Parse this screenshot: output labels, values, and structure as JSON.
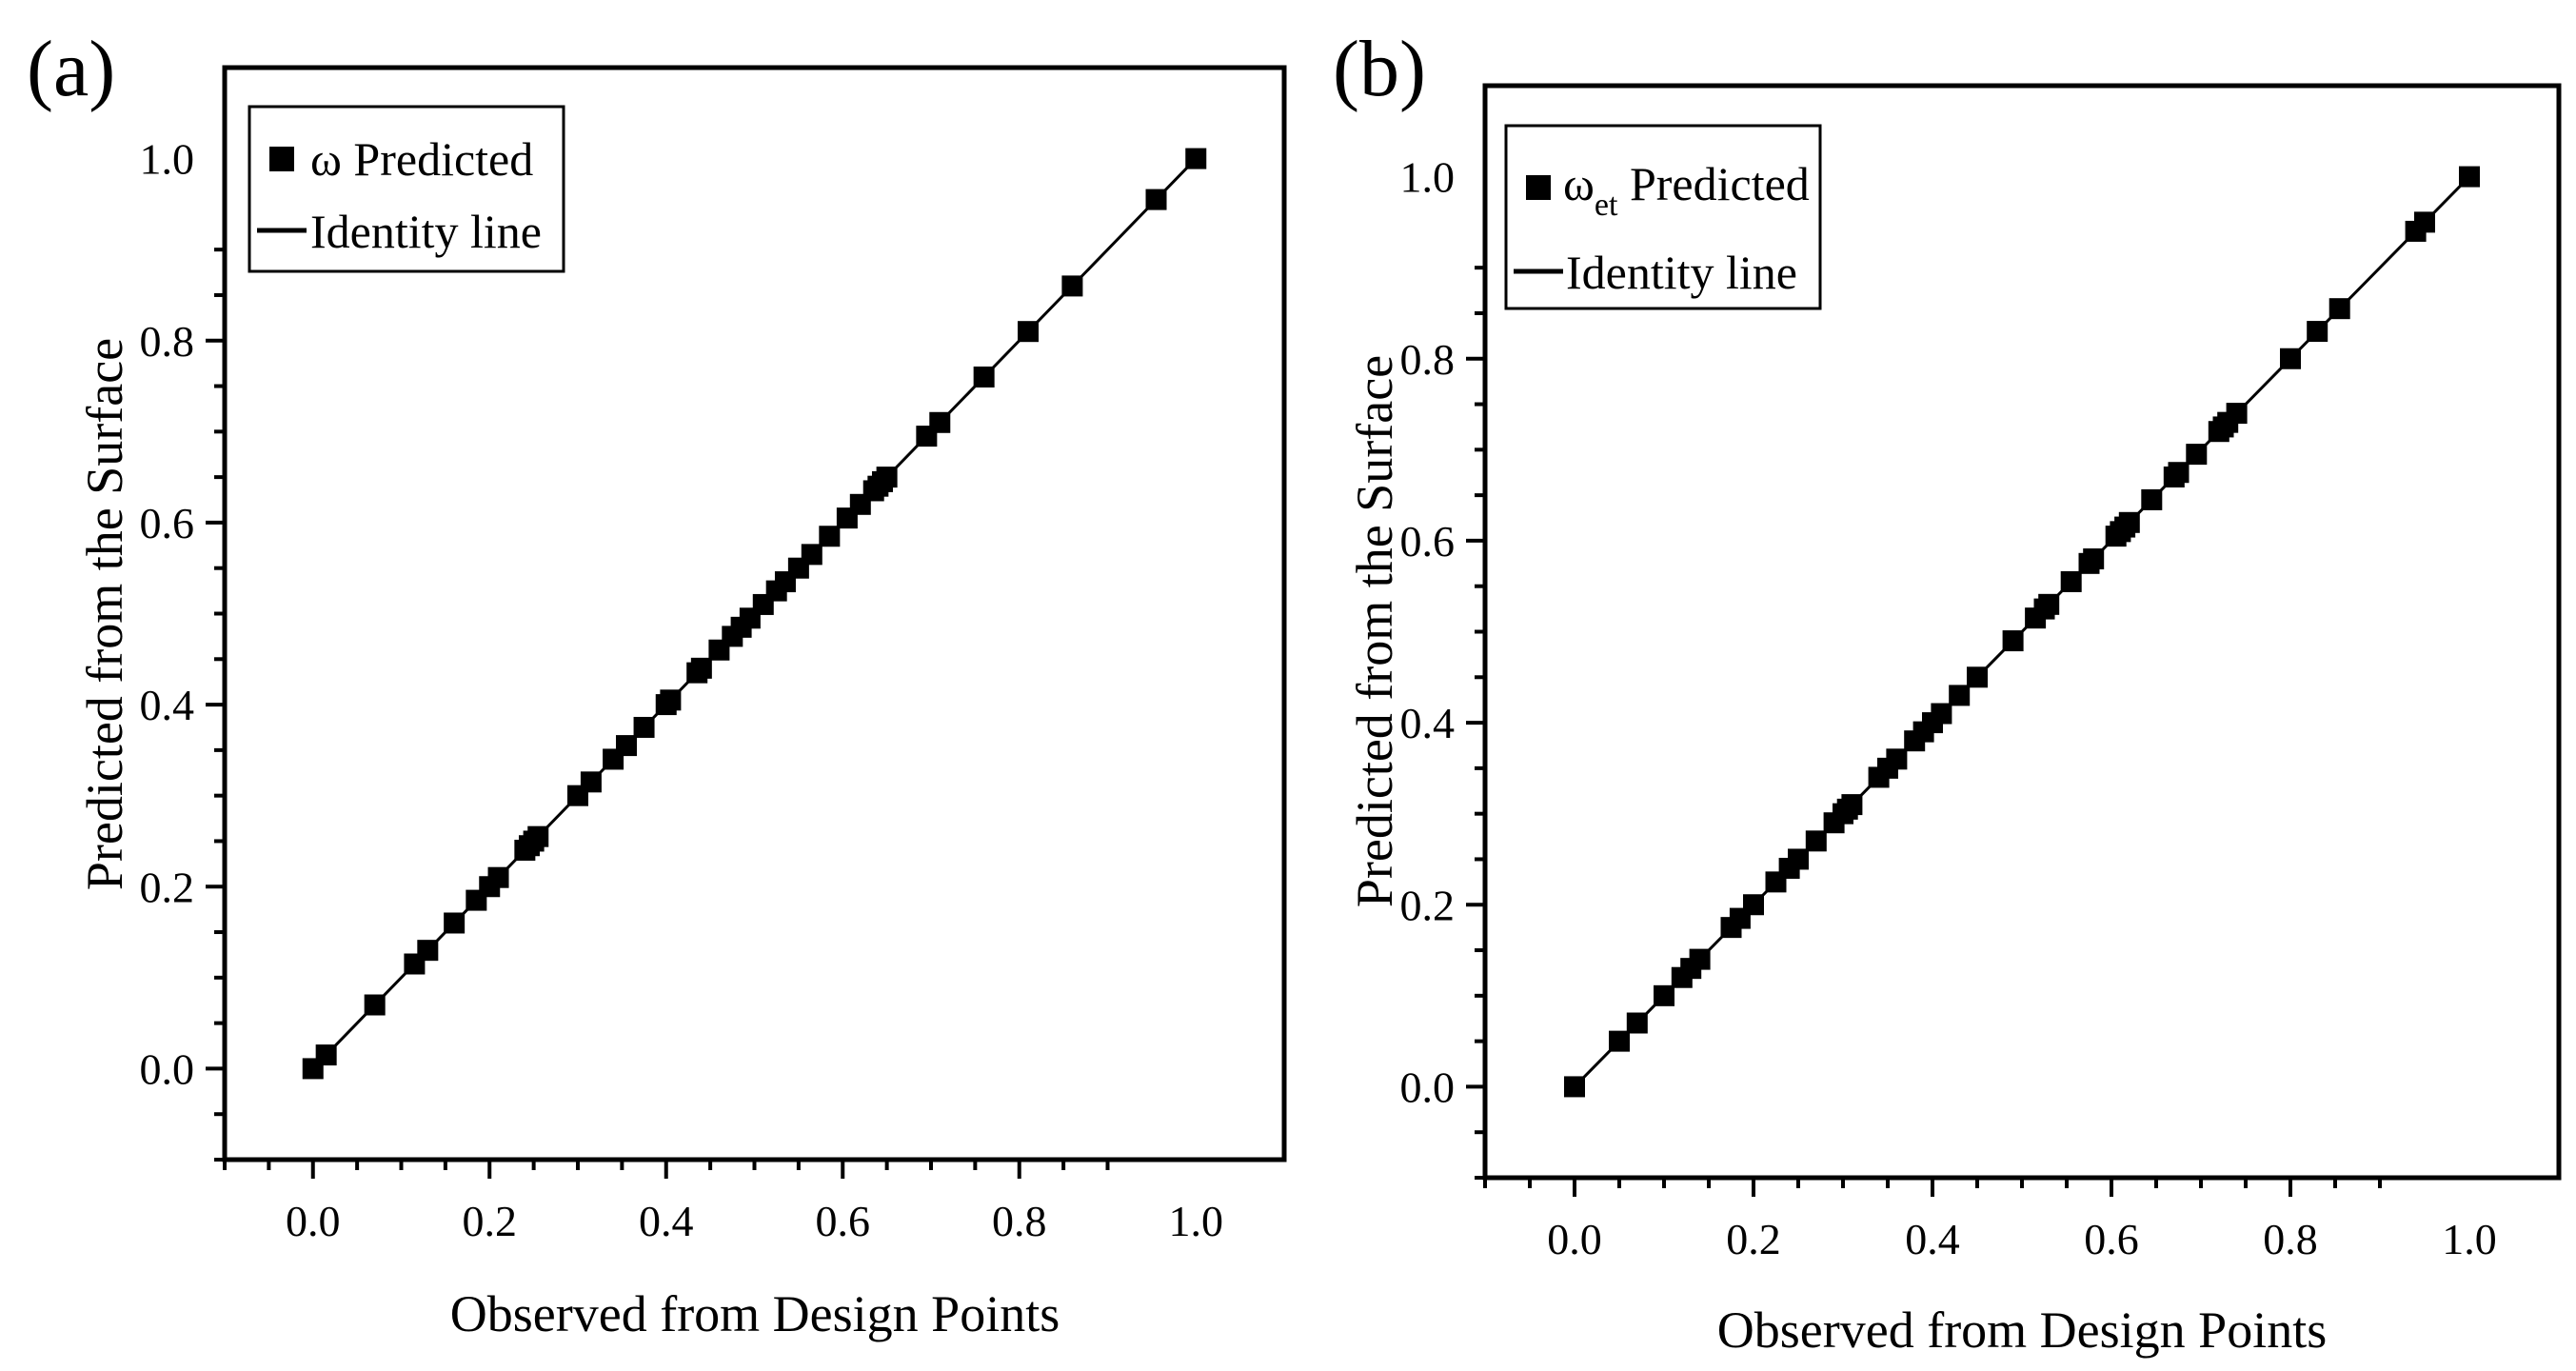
{
  "chart_data": [
    {
      "type": "scatter",
      "panel_label": "(a)",
      "xlabel": "Observed from Design Points",
      "ylabel": "Predicted from the Surface",
      "xlim": [
        -0.1,
        1.1
      ],
      "ylim": [
        -0.1,
        1.1
      ],
      "xticks": [
        "0.0",
        "0.2",
        "0.4",
        "0.6",
        "0.8",
        "1.0"
      ],
      "yticks": [
        "0.0",
        "0.2",
        "0.4",
        "0.6",
        "0.8",
        "1.0"
      ],
      "grid": false,
      "legend_position": "top-left",
      "series": [
        {
          "name": "ω Predicted",
          "symbol": "ω",
          "subscript": "",
          "label_rest": " Predicted",
          "marker": "square",
          "color": "#000000",
          "x": [
            0.0,
            0.015,
            0.07,
            0.115,
            0.13,
            0.16,
            0.185,
            0.2,
            0.21,
            0.24,
            0.245,
            0.25,
            0.255,
            0.3,
            0.315,
            0.34,
            0.355,
            0.375,
            0.4,
            0.405,
            0.435,
            0.44,
            0.46,
            0.475,
            0.485,
            0.495,
            0.51,
            0.525,
            0.535,
            0.55,
            0.565,
            0.585,
            0.605,
            0.62,
            0.635,
            0.64,
            0.645,
            0.65,
            0.695,
            0.71,
            0.76,
            0.81,
            0.86,
            0.955,
            1.0
          ],
          "y": [
            0.0,
            0.015,
            0.07,
            0.115,
            0.13,
            0.16,
            0.185,
            0.2,
            0.21,
            0.24,
            0.245,
            0.25,
            0.255,
            0.3,
            0.315,
            0.34,
            0.355,
            0.375,
            0.4,
            0.405,
            0.435,
            0.44,
            0.46,
            0.475,
            0.485,
            0.495,
            0.51,
            0.525,
            0.535,
            0.55,
            0.565,
            0.585,
            0.605,
            0.62,
            0.635,
            0.64,
            0.645,
            0.65,
            0.695,
            0.71,
            0.76,
            0.81,
            0.86,
            0.955,
            1.0
          ]
        },
        {
          "name": "Identity line",
          "type": "line",
          "color": "#000000",
          "x": [
            0.0,
            1.0
          ],
          "y": [
            0.0,
            1.0
          ]
        }
      ]
    },
    {
      "type": "scatter",
      "panel_label": "(b)",
      "xlabel": "Observed from Design Points",
      "ylabel": "Predicted from the Surface",
      "xlim": [
        -0.1,
        1.1
      ],
      "ylim": [
        -0.1,
        1.1
      ],
      "xticks": [
        "0.0",
        "0.2",
        "0.4",
        "0.6",
        "0.8",
        "1.0"
      ],
      "yticks": [
        "0.0",
        "0.2",
        "0.4",
        "0.6",
        "0.8",
        "1.0"
      ],
      "grid": false,
      "legend_position": "top-left",
      "series": [
        {
          "name": "ωet Predicted",
          "symbol": "ω",
          "subscript": "et",
          "label_rest": " Predicted",
          "marker": "square",
          "color": "#000000",
          "x": [
            0.0,
            0.05,
            0.07,
            0.1,
            0.12,
            0.13,
            0.14,
            0.175,
            0.185,
            0.2,
            0.225,
            0.24,
            0.25,
            0.27,
            0.29,
            0.3,
            0.305,
            0.31,
            0.34,
            0.35,
            0.36,
            0.38,
            0.39,
            0.4,
            0.41,
            0.43,
            0.45,
            0.49,
            0.515,
            0.525,
            0.53,
            0.555,
            0.575,
            0.58,
            0.605,
            0.61,
            0.615,
            0.62,
            0.645,
            0.67,
            0.675,
            0.695,
            0.72,
            0.725,
            0.73,
            0.74,
            0.8,
            0.83,
            0.855,
            0.94,
            0.95,
            1.0
          ],
          "y": [
            0.0,
            0.05,
            0.07,
            0.1,
            0.12,
            0.13,
            0.14,
            0.175,
            0.185,
            0.2,
            0.225,
            0.24,
            0.25,
            0.27,
            0.29,
            0.3,
            0.305,
            0.31,
            0.34,
            0.35,
            0.36,
            0.38,
            0.39,
            0.4,
            0.41,
            0.43,
            0.45,
            0.49,
            0.515,
            0.525,
            0.53,
            0.555,
            0.575,
            0.58,
            0.605,
            0.61,
            0.615,
            0.62,
            0.645,
            0.67,
            0.675,
            0.695,
            0.72,
            0.725,
            0.73,
            0.74,
            0.8,
            0.83,
            0.855,
            0.94,
            0.95,
            1.0
          ]
        },
        {
          "name": "Identity line",
          "type": "line",
          "color": "#000000",
          "x": [
            0.0,
            1.0
          ],
          "y": [
            0.0,
            1.0
          ]
        }
      ]
    }
  ]
}
